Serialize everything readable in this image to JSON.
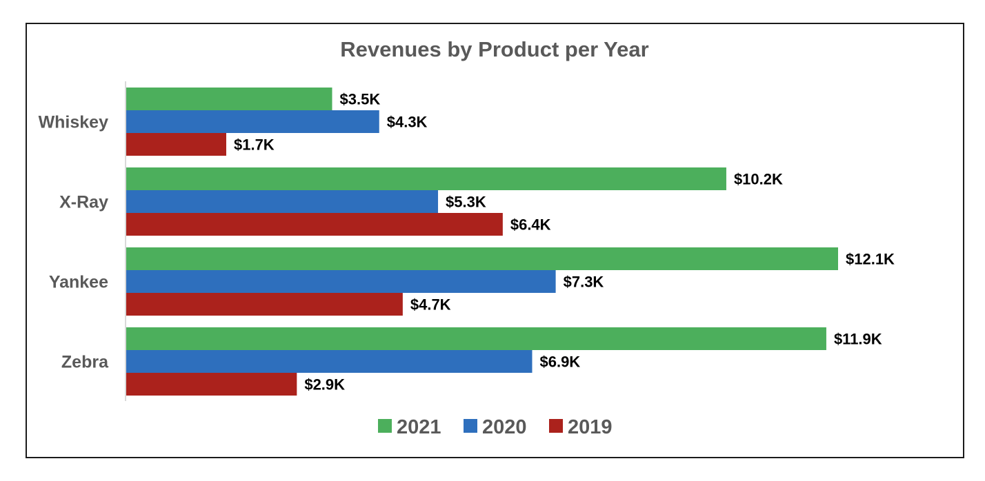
{
  "chart_data": {
    "type": "bar",
    "orientation": "horizontal",
    "title": "Revenues by Product per Year",
    "xlabel": "",
    "ylabel": "",
    "xlim": [
      0,
      14000
    ],
    "grid": false,
    "legend_position": "bottom",
    "categories": [
      "Whiskey",
      "X-Ray",
      "Yankee",
      "Zebra"
    ],
    "series": [
      {
        "name": "2021",
        "color": "#4caf5c",
        "values": [
          3500,
          10200,
          12100,
          11900
        ],
        "labels": [
          "$3.5K",
          "$10.2K",
          "$12.1K",
          "$11.9K"
        ]
      },
      {
        "name": "2020",
        "color": "#2e6fbd",
        "values": [
          4300,
          5300,
          7300,
          6900
        ],
        "labels": [
          "$4.3K",
          "$5.3K",
          "$7.3K",
          "$6.9K"
        ]
      },
      {
        "name": "2019",
        "color": "#ab221c",
        "values": [
          1700,
          6400,
          4700,
          2900
        ],
        "labels": [
          "$1.7K",
          "$6.4K",
          "$4.7K",
          "$2.9K"
        ]
      }
    ],
    "axis_color": "#d9d9d9"
  }
}
